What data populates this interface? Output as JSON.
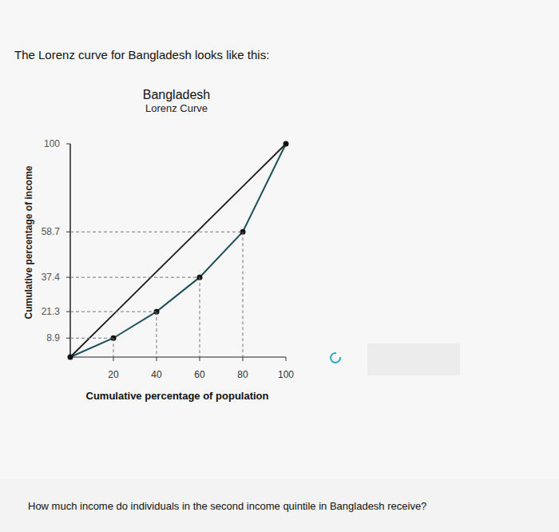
{
  "intro": "The Lorenz curve for Bangladesh looks like this:",
  "question": "How much income do individuals in the second income quintile in Bangladesh receive?",
  "chart_data": {
    "type": "line",
    "title": "Bangladesh",
    "subtitle": "Lorenz Curve",
    "x_label": "Cumulative percentage of population",
    "y_label": "Cumulative percentage of income",
    "x": [
      0,
      20,
      40,
      60,
      80,
      100
    ],
    "series": [
      {
        "values": [
          0,
          8.9,
          21.3,
          37.4,
          58.7,
          100
        ],
        "color": "#1e4f5c",
        "marker": "circle",
        "line_style": "solid"
      },
      {
        "values": [
          0,
          20,
          40,
          60,
          80,
          100
        ],
        "color": "#1a1a1a",
        "marker": "none",
        "line_style": "solid"
      }
    ],
    "xlim": [
      0,
      100
    ],
    "ylim": [
      0,
      100
    ],
    "xticks": [
      20,
      40,
      60,
      80,
      100
    ],
    "yticks": [
      8.9,
      21.3,
      37.4,
      58.7,
      100
    ],
    "grid": false
  }
}
